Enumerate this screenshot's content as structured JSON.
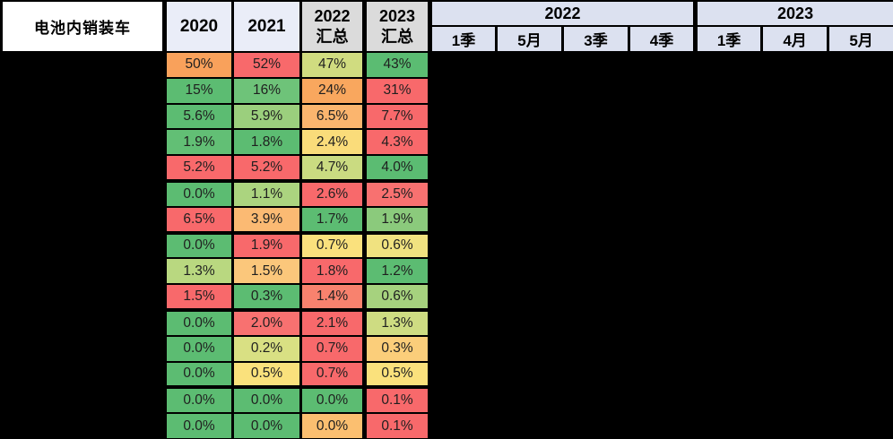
{
  "table": {
    "corner_label": "电池内销装车",
    "summary_headers": [
      {
        "line1": "2020",
        "line2": ""
      },
      {
        "line1": "2021",
        "line2": ""
      },
      {
        "line1": "2022",
        "line2": "汇总"
      },
      {
        "line1": "2023",
        "line2": "汇总"
      }
    ],
    "groups": [
      {
        "label": "2022",
        "subs": [
          "1季",
          "5月",
          "3季",
          "4季"
        ]
      },
      {
        "label": "2023",
        "subs": [
          "1季",
          "4月",
          "5月"
        ]
      }
    ],
    "thick_top_rows": [
      6,
      8,
      11,
      14
    ],
    "rows": [
      {
        "values": [
          "50%",
          "52%",
          "47%",
          "43%"
        ],
        "colors": [
          "#F9A15B",
          "#F8696B",
          "#D0DC80",
          "#5BBC72"
        ]
      },
      {
        "values": [
          "15%",
          "16%",
          "24%",
          "31%"
        ],
        "colors": [
          "#5CBC72",
          "#6EC379",
          "#F9A75E",
          "#F8696B"
        ]
      },
      {
        "values": [
          "5.6%",
          "5.9%",
          "6.5%",
          "7.7%"
        ],
        "colors": [
          "#5CBC72",
          "#9BCF7D",
          "#FBB56E",
          "#F8696B"
        ]
      },
      {
        "values": [
          "1.9%",
          "1.8%",
          "2.4%",
          "4.3%"
        ],
        "colors": [
          "#62BF75",
          "#5CBC72",
          "#FADC7A",
          "#F8696B"
        ]
      },
      {
        "values": [
          "5.2%",
          "5.2%",
          "4.7%",
          "4.0%"
        ],
        "colors": [
          "#F8696B",
          "#F8696B",
          "#CADB81",
          "#5BBC72"
        ]
      },
      {
        "values": [
          "0.0%",
          "1.1%",
          "2.6%",
          "2.5%"
        ],
        "colors": [
          "#5CBC72",
          "#ABD47F",
          "#F8696B",
          "#F87170"
        ]
      },
      {
        "values": [
          "6.5%",
          "3.9%",
          "1.7%",
          "1.9%"
        ],
        "colors": [
          "#F8696B",
          "#FBBA73",
          "#5CBC72",
          "#8BCA7C"
        ]
      },
      {
        "values": [
          "0.0%",
          "1.9%",
          "0.7%",
          "0.6%"
        ],
        "colors": [
          "#5CBC72",
          "#F8696B",
          "#FAE17D",
          "#F0E280"
        ]
      },
      {
        "values": [
          "1.3%",
          "1.5%",
          "1.8%",
          "1.2%"
        ],
        "colors": [
          "#B9D880",
          "#FBC77B",
          "#F8696B",
          "#5CBC72"
        ]
      },
      {
        "values": [
          "1.5%",
          "0.3%",
          "1.4%",
          "0.6%"
        ],
        "colors": [
          "#F8696B",
          "#5CBC72",
          "#F8826E",
          "#A6D27E"
        ]
      },
      {
        "values": [
          "0.0%",
          "2.0%",
          "2.1%",
          "1.3%"
        ],
        "colors": [
          "#5CBC72",
          "#F87170",
          "#F8696B",
          "#CEDC82"
        ]
      },
      {
        "values": [
          "0.0%",
          "0.2%",
          "0.7%",
          "0.3%"
        ],
        "colors": [
          "#5CBC72",
          "#D9E083",
          "#F8696B",
          "#FBCE7A"
        ]
      },
      {
        "values": [
          "0.0%",
          "0.5%",
          "0.7%",
          "0.5%"
        ],
        "colors": [
          "#5CBC72",
          "#FAE17C",
          "#F8696B",
          "#FAE17C"
        ]
      },
      {
        "values": [
          "0.0%",
          "0.0%",
          "0.0%",
          "0.1%"
        ],
        "colors": [
          "#5CBC72",
          "#5CBC72",
          "#5CBC72",
          "#F8696B"
        ]
      },
      {
        "values": [
          "0.0%",
          "0.0%",
          "0.0%",
          "0.1%"
        ],
        "colors": [
          "#5CBC72",
          "#5CBC72",
          "#FBBF70",
          "#F8696B"
        ]
      }
    ]
  },
  "colors": {
    "grid": "#000000",
    "masked_area": "#000000",
    "corner_bg": "#FFFFFF",
    "year_header_bg": "#EAEDF8",
    "summary_header_bg": "#DBDBDB",
    "period_header_bg": "#DCE1F0",
    "header_text": "#000000",
    "cell_text": "#1F1F1F",
    "scale_low": "#5CBC72",
    "scale_mid": "#FAE17D",
    "scale_high": "#F8696B"
  },
  "chart_data": {
    "type": "heatmap",
    "title": "电池内销装车",
    "unit": "%",
    "columns": [
      "2020",
      "2021",
      "2022汇总",
      "2023汇总"
    ],
    "period_columns": [
      "2022 1季",
      "2022 5月",
      "2022 3季",
      "2022 4季",
      "2023 1季",
      "2023 4月",
      "2023 5月"
    ],
    "values": [
      [
        50,
        52,
        47,
        43
      ],
      [
        15,
        16,
        24,
        31
      ],
      [
        5.6,
        5.9,
        6.5,
        7.7
      ],
      [
        1.9,
        1.8,
        2.4,
        4.3
      ],
      [
        5.2,
        5.2,
        4.7,
        4.0
      ],
      [
        0.0,
        1.1,
        2.6,
        2.5
      ],
      [
        6.5,
        3.9,
        1.7,
        1.9
      ],
      [
        0.0,
        1.9,
        0.7,
        0.6
      ],
      [
        1.3,
        1.5,
        1.8,
        1.2
      ],
      [
        1.5,
        0.3,
        1.4,
        0.6
      ],
      [
        0.0,
        2.0,
        2.1,
        1.3
      ],
      [
        0.0,
        0.2,
        0.7,
        0.3
      ],
      [
        0.0,
        0.5,
        0.7,
        0.5
      ],
      [
        0.0,
        0.0,
        0.0,
        0.1
      ],
      [
        0.0,
        0.0,
        0.0,
        0.1
      ]
    ],
    "row_labels_visible": false,
    "period_values_visible": false,
    "color_scale": "red-yellow-green per row",
    "legend_position": "none",
    "grid": true
  }
}
